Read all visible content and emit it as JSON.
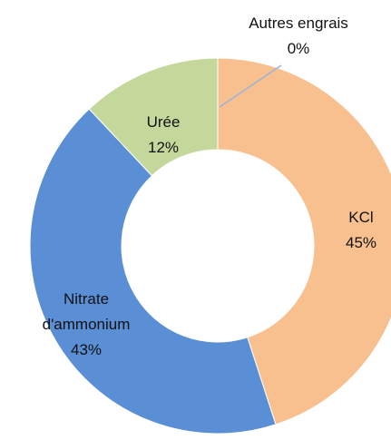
{
  "chart_data": {
    "type": "donut",
    "categories": [
      "Autres engrais",
      "KCl",
      "Nitrate d'ammonium",
      "Urée"
    ],
    "values": [
      0,
      45,
      43,
      12
    ],
    "value_labels": [
      "0%",
      "45%",
      "43%",
      "12%"
    ],
    "colors": [
      "#8e7cc3",
      "#f8c08f",
      "#5a8fd6",
      "#c5d89b"
    ]
  }
}
